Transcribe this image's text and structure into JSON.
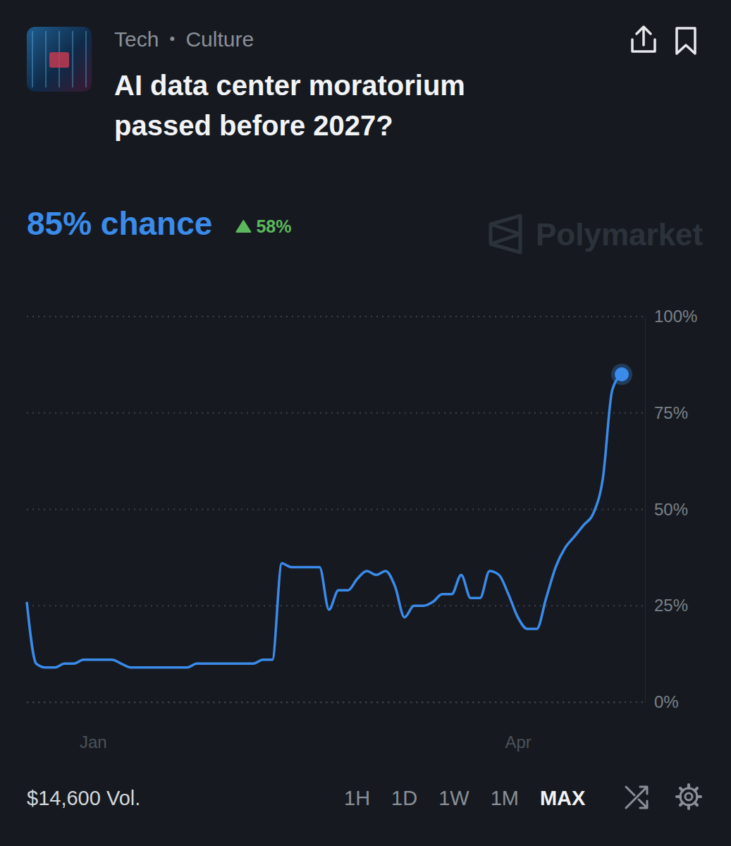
{
  "chart_data": {
    "type": "line",
    "tags": [
      "Tech",
      "Culture"
    ],
    "title": "AI data center moratorium passed before 2027?",
    "headline": "85% chance",
    "change": "58%",
    "source": "Polymarket",
    "volume": "$14,600 Vol.",
    "timeframes": [
      "1H",
      "1D",
      "1W",
      "1M",
      "MAX"
    ],
    "categories": [
      null,
      null,
      null,
      null,
      null,
      null,
      null,
      "Jan",
      null,
      null,
      null,
      null,
      null,
      null,
      null,
      null,
      null,
      null,
      null,
      null,
      null,
      null,
      null,
      null,
      null,
      null,
      null,
      null,
      null,
      null,
      null,
      null,
      null,
      null,
      null,
      null,
      null,
      null,
      null,
      null,
      null,
      null,
      null,
      null,
      null,
      null,
      null,
      null,
      null,
      null,
      null,
      null,
      "Apr",
      null,
      null,
      null,
      null,
      null,
      null,
      null,
      null,
      null,
      null,
      null
    ],
    "values": [
      26,
      10,
      9,
      9,
      10,
      10,
      11,
      11,
      11,
      11,
      10,
      9,
      9,
      9,
      9,
      9,
      9,
      9,
      10,
      10,
      10,
      10,
      10,
      10,
      10,
      11,
      11,
      36,
      35,
      35,
      35,
      35,
      24,
      29,
      29,
      32,
      34,
      33,
      34,
      30,
      22,
      25,
      25,
      26,
      28,
      28,
      33,
      27,
      27,
      34,
      33,
      28,
      22,
      19,
      19,
      27,
      35,
      40,
      43,
      46,
      49,
      58,
      81,
      85
    ],
    "color": "#3b8beb",
    "ylim": [
      0,
      100
    ],
    "yticks": [
      {
        "value": 0,
        "label": "0%"
      },
      {
        "value": 25,
        "label": "25%"
      },
      {
        "value": 50,
        "label": "50%"
      },
      {
        "value": 75,
        "label": "75%"
      },
      {
        "value": 100,
        "label": "100%"
      }
    ],
    "grid": true
  }
}
